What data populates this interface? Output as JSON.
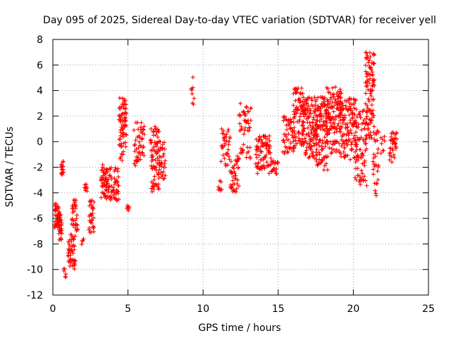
{
  "chart_data": {
    "type": "scatter",
    "title": "Day 095 of 2025, Sidereal Day-to-day VTEC variation (SDTVAR) for receiver yell",
    "xlabel": "GPS time / hours",
    "ylabel": "SDTVAR / TECUs",
    "xlim": [
      0,
      25
    ],
    "ylim": [
      -12,
      8
    ],
    "xticks": [
      0,
      5,
      10,
      15,
      20,
      25
    ],
    "yticks": [
      -12,
      -10,
      -8,
      -6,
      -4,
      -2,
      0,
      2,
      4,
      6,
      8
    ],
    "grid": true,
    "marker": "plus",
    "color": "#ff0000",
    "series": [
      {
        "name": "SDTVAR",
        "clusters": [
          {
            "x": [
              0.1,
              0.45
            ],
            "y": [
              -6.8,
              -4.8
            ],
            "n": 40
          },
          {
            "x": [
              0.4,
              0.6
            ],
            "y": [
              -7.8,
              -5.5
            ],
            "n": 30
          },
          {
            "x": [
              0.55,
              0.7
            ],
            "y": [
              -2.6,
              -1.5
            ],
            "n": 20
          },
          {
            "x": [
              0.7,
              0.9
            ],
            "y": [
              -10.7,
              -9.9
            ],
            "n": 6
          },
          {
            "x": [
              1.0,
              1.5
            ],
            "y": [
              -10.0,
              -7.2
            ],
            "n": 45
          },
          {
            "x": [
              1.25,
              1.65
            ],
            "y": [
              -7.0,
              -4.5
            ],
            "n": 30
          },
          {
            "x": [
              1.9,
              2.05
            ],
            "y": [
              -8.2,
              -7.5
            ],
            "n": 4
          },
          {
            "x": [
              2.1,
              2.3
            ],
            "y": [
              -3.9,
              -3.3
            ],
            "n": 8
          },
          {
            "x": [
              2.4,
              2.75
            ],
            "y": [
              -7.2,
              -4.5
            ],
            "n": 30
          },
          {
            "x": [
              3.2,
              3.6
            ],
            "y": [
              -4.5,
              -1.8
            ],
            "n": 40
          },
          {
            "x": [
              3.55,
              3.95
            ],
            "y": [
              -4.6,
              -2.0
            ],
            "n": 30
          },
          {
            "x": [
              4.0,
              4.4
            ],
            "y": [
              -4.8,
              -2.0
            ],
            "n": 35
          },
          {
            "x": [
              4.4,
              4.9
            ],
            "y": [
              -1.5,
              3.5
            ],
            "n": 70
          },
          {
            "x": [
              4.9,
              5.1
            ],
            "y": [
              -5.6,
              -5.0
            ],
            "n": 6
          },
          {
            "x": [
              5.4,
              6.1
            ],
            "y": [
              -2.0,
              1.5
            ],
            "n": 45
          },
          {
            "x": [
              6.5,
              7.1
            ],
            "y": [
              -4.0,
              1.5
            ],
            "n": 70
          },
          {
            "x": [
              7.0,
              7.5
            ],
            "y": [
              -3.0,
              0.0
            ],
            "n": 35
          },
          {
            "x": [
              9.2,
              9.4
            ],
            "y": [
              2.4,
              5.3
            ],
            "n": 8
          },
          {
            "x": [
              11.0,
              11.25
            ],
            "y": [
              -4.0,
              -3.0
            ],
            "n": 8
          },
          {
            "x": [
              11.2,
              11.8
            ],
            "y": [
              -2.0,
              1.0
            ],
            "n": 35
          },
          {
            "x": [
              11.8,
              12.4
            ],
            "y": [
              -4.0,
              -1.0
            ],
            "n": 40
          },
          {
            "x": [
              12.4,
              13.2
            ],
            "y": [
              -1.5,
              3.0
            ],
            "n": 50
          },
          {
            "x": [
              13.5,
              14.5
            ],
            "y": [
              -2.5,
              0.5
            ],
            "n": 80
          },
          {
            "x": [
              14.5,
              15.0
            ],
            "y": [
              -3.0,
              -1.0
            ],
            "n": 20
          },
          {
            "x": [
              15.3,
              16.1
            ],
            "y": [
              -1.0,
              2.0
            ],
            "n": 50
          },
          {
            "x": [
              16.0,
              16.7
            ],
            "y": [
              -0.5,
              4.2
            ],
            "n": 70
          },
          {
            "x": [
              16.6,
              17.6
            ],
            "y": [
              -1.5,
              3.5
            ],
            "n": 120
          },
          {
            "x": [
              17.5,
              18.3
            ],
            "y": [
              -2.3,
              3.5
            ],
            "n": 110
          },
          {
            "x": [
              18.2,
              19.2
            ],
            "y": [
              -1.0,
              4.3
            ],
            "n": 120
          },
          {
            "x": [
              19.1,
              20.2
            ],
            "y": [
              -1.5,
              3.5
            ],
            "n": 120
          },
          {
            "x": [
              20.1,
              20.9
            ],
            "y": [
              -3.5,
              2.5
            ],
            "n": 80
          },
          {
            "x": [
              20.8,
              21.4
            ],
            "y": [
              0.0,
              7.0
            ],
            "n": 100
          },
          {
            "x": [
              21.3,
              21.7
            ],
            "y": [
              -4.5,
              1.0
            ],
            "n": 30
          },
          {
            "x": [
              21.8,
              22.1
            ],
            "y": [
              -1.0,
              0.5
            ],
            "n": 8
          },
          {
            "x": [
              22.4,
              22.9
            ],
            "y": [
              -1.6,
              1.0
            ],
            "n": 35
          }
        ]
      }
    ]
  }
}
